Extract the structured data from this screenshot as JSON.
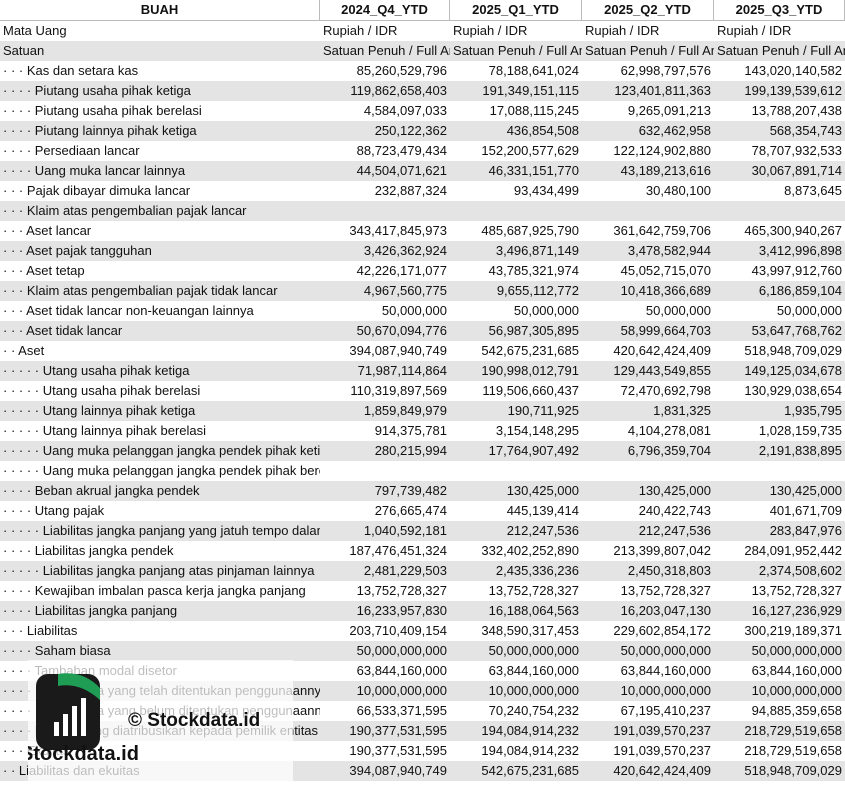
{
  "table": {
    "header": [
      "BUAH",
      "2024_Q4_YTD",
      "2025_Q1_YTD",
      "2025_Q2_YTD",
      "2025_Q3_YTD"
    ],
    "rows": [
      [
        "Mata Uang",
        "Rupiah / IDR",
        "Rupiah / IDR",
        "Rupiah / IDR",
        "Rupiah / IDR"
      ],
      [
        "Satuan",
        "Satuan Penuh / Full Amount",
        "Satuan Penuh / Full Amount",
        "Satuan Penuh / Full Amount",
        "Satuan Penuh / Full Amount"
      ],
      [
        "· · · Kas dan setara kas",
        "85,260,529,796",
        "78,188,641,024",
        "62,998,797,576",
        "143,020,140,582"
      ],
      [
        "· · · · Piutang usaha pihak ketiga",
        "119,862,658,403",
        "191,349,151,115",
        "123,401,811,363",
        "199,139,539,612"
      ],
      [
        "· · · · Piutang usaha pihak berelasi",
        "4,584,097,033",
        "17,088,115,245",
        "9,265,091,213",
        "13,788,207,438"
      ],
      [
        "· · · · Piutang lainnya pihak ketiga",
        "250,122,362",
        "436,854,508",
        "632,462,958",
        "568,354,743"
      ],
      [
        "· · · · Persediaan lancar",
        "88,723,479,434",
        "152,200,577,629",
        "122,124,902,880",
        "78,707,932,533"
      ],
      [
        "· · · · Uang muka lancar lainnya",
        "44,504,071,621",
        "46,331,151,770",
        "43,189,213,616",
        "30,067,891,714"
      ],
      [
        "· · · Pajak dibayar dimuka lancar",
        "232,887,324",
        "93,434,499",
        "30,480,100",
        "8,873,645"
      ],
      [
        "· · · Klaim atas pengembalian pajak lancar",
        null,
        null,
        null,
        null
      ],
      [
        "· · · Aset lancar",
        "343,417,845,973",
        "485,687,925,790",
        "361,642,759,706",
        "465,300,940,267"
      ],
      [
        "· · · Aset pajak tangguhan",
        "3,426,362,924",
        "3,496,871,149",
        "3,478,582,944",
        "3,412,996,898"
      ],
      [
        "· · · Aset tetap",
        "42,226,171,077",
        "43,785,321,974",
        "45,052,715,070",
        "43,997,912,760"
      ],
      [
        "· · · Klaim atas pengembalian pajak tidak lancar",
        "4,967,560,775",
        "9,655,112,772",
        "10,418,366,689",
        "6,186,859,104"
      ],
      [
        "· · · Aset tidak lancar non-keuangan lainnya",
        "50,000,000",
        "50,000,000",
        "50,000,000",
        "50,000,000"
      ],
      [
        "· · · Aset tidak lancar",
        "50,670,094,776",
        "56,987,305,895",
        "58,999,664,703",
        "53,647,768,762"
      ],
      [
        "· · Aset",
        "394,087,940,749",
        "542,675,231,685",
        "420,642,424,409",
        "518,948,709,029"
      ],
      [
        "· · · · · Utang usaha pihak ketiga",
        "71,987,114,864",
        "190,998,012,791",
        "129,443,549,855",
        "149,125,034,678"
      ],
      [
        "· · · · · Utang usaha pihak berelasi",
        "110,319,897,569",
        "119,506,660,437",
        "72,470,692,798",
        "130,929,038,654"
      ],
      [
        "· · · · · Utang lainnya pihak ketiga",
        "1,859,849,979",
        "190,711,925",
        "1,831,325",
        "1,935,795"
      ],
      [
        "· · · · · Utang lainnya pihak berelasi",
        "914,375,781",
        "3,154,148,295",
        "4,104,278,081",
        "1,028,159,735"
      ],
      [
        "· · · · · Uang muka pelanggan jangka pendek pihak ketiga",
        "280,215,994",
        "17,764,907,492",
        "6,796,359,704",
        "2,191,838,895"
      ],
      [
        "· · · · · Uang muka pelanggan jangka pendek pihak berelasi",
        null,
        null,
        null,
        null
      ],
      [
        "· · · · Beban akrual jangka pendek",
        "797,739,482",
        "130,425,000",
        "130,425,000",
        "130,425,000"
      ],
      [
        "· · · · Utang pajak",
        "276,665,474",
        "445,139,414",
        "240,422,743",
        "401,671,709"
      ],
      [
        "· · · · · Liabilitas jangka panjang yang jatuh tempo dalam satu tahun",
        "1,040,592,181",
        "212,247,536",
        "212,247,536",
        "283,847,976"
      ],
      [
        "· · · · Liabilitas jangka pendek",
        "187,476,451,324",
        "332,402,252,890",
        "213,399,807,042",
        "284,091,952,442"
      ],
      [
        "· · · · · Liabilitas jangka panjang atas pinjaman lainnya",
        "2,481,229,503",
        "2,435,336,236",
        "2,450,318,803",
        "2,374,508,602"
      ],
      [
        "· · · · Kewajiban imbalan pasca kerja jangka panjang",
        "13,752,728,327",
        "13,752,728,327",
        "13,752,728,327",
        "13,752,728,327"
      ],
      [
        "· · · · Liabilitas jangka panjang",
        "16,233,957,830",
        "16,188,064,563",
        "16,203,047,130",
        "16,127,236,929"
      ],
      [
        "· · · Liabilitas",
        "203,710,409,154",
        "348,590,317,453",
        "229,602,854,172",
        "300,219,189,371"
      ],
      [
        "· · · · Saham biasa",
        "50,000,000,000",
        "50,000,000,000",
        "50,000,000,000",
        "50,000,000,000"
      ],
      [
        "· · · · Tambahan modal disetor",
        "63,844,160,000",
        "63,844,160,000",
        "63,844,160,000",
        "63,844,160,000"
      ],
      [
        "· · · · · Saldo laba yang telah ditentukan penggunaannya",
        "10,000,000,000",
        "10,000,000,000",
        "10,000,000,000",
        "10,000,000,000"
      ],
      [
        "· · · · · Saldo laba yang belum ditentukan penggunaannya",
        "66,533,371,595",
        "70,240,754,232",
        "67,195,410,237",
        "94,885,359,658"
      ],
      [
        "· · · · Ekuitas yang diatribusikan kepada pemilik entitas induk",
        "190,377,531,595",
        "194,084,914,232",
        "191,039,570,237",
        "218,729,519,658"
      ],
      [
        "· · · Ekuitas",
        "190,377,531,595",
        "194,084,914,232",
        "191,039,570,237",
        "218,729,519,658"
      ],
      [
        "· · Liabilitas dan ekuitas",
        "394,087,940,749",
        "542,675,231,685",
        "420,642,424,409",
        "518,948,709,029"
      ]
    ]
  },
  "watermark": {
    "text": "© Stockdata.id",
    "brand": "Stockdata.id"
  }
}
